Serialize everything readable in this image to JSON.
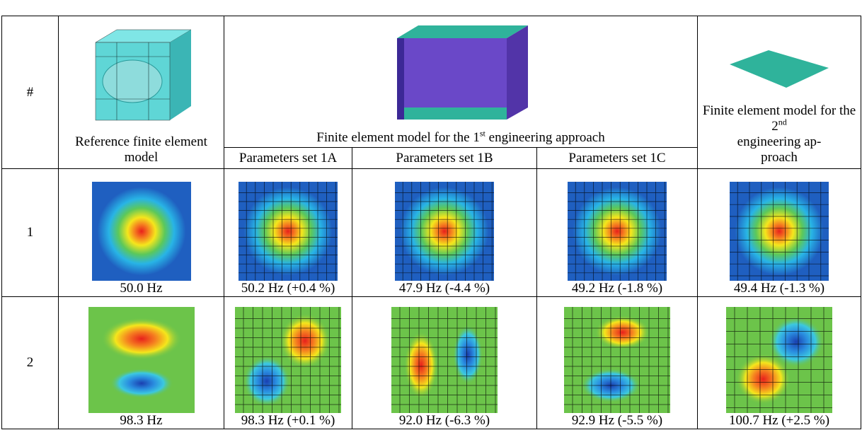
{
  "header": {
    "number": "#",
    "reference": "Reference finite element model",
    "approach1": {
      "text": "Finite element model for the 1",
      "sup": "st",
      "rest": " engineering approach"
    },
    "approach2": {
      "line1": "Finite element model for the 2",
      "sup": "nd",
      "line2": "engineering ap-",
      "line3": "proach"
    },
    "sets": [
      "Parameters set 1A",
      "Parameters set 1B",
      "Parameters set 1C"
    ]
  },
  "rows": [
    {
      "number": "1",
      "cells": [
        "50.0 Hz",
        "50.2 Hz (+0.4 %)",
        "47.9 Hz (-4.4 %)",
        "49.2 Hz (-1.8 %)",
        "49.4 Hz (-1.3 %)"
      ]
    },
    {
      "number": "2",
      "cells": [
        "98.3 Hz",
        "98.3 Hz (+0.1 %)",
        "92.0 Hz (-6.3 %)",
        "92.9 Hz (-5.5 %)",
        "100.7 Hz (+2.5 %)"
      ]
    }
  ]
}
